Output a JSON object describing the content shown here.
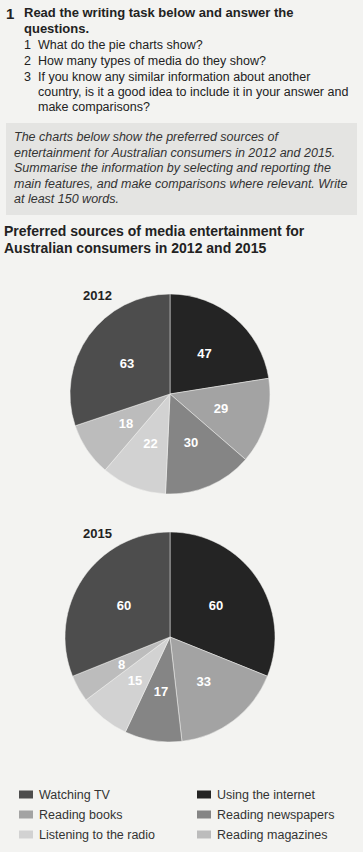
{
  "exercise": {
    "number": "1",
    "instruction": "Read the writing task below and answer the questions.",
    "questions": [
      {
        "number": "1",
        "text": "What do the pie charts show?"
      },
      {
        "number": "2",
        "text": "How many types of media do they show?"
      },
      {
        "number": "3",
        "text": "If you know any similar information about another country, is it a good idea to include it in your answer and make comparisons?"
      }
    ]
  },
  "task": "The charts below show the preferred sources of entertainment for Australian consumers in 2012 and 2015. Summarise the information by selecting and reporting the main features, and make comparisons where relevant. Write at least 150 words.",
  "heading": "Preferred sources of media entertainment for Australian consumers in 2012 and 2015",
  "chart_data": [
    {
      "type": "pie",
      "title": "2012",
      "categories": [
        "Using the internet",
        "Reading books",
        "Reading newspapers",
        "Listening to the radio",
        "Reading magazines",
        "Watching TV"
      ],
      "values": [
        47,
        29,
        30,
        22,
        18,
        63
      ],
      "colors": [
        "#242424",
        "#a3a3a3",
        "#858585",
        "#d2d2d2",
        "#bcbcbc",
        "#4d4d4d"
      ],
      "data_labels": true
    },
    {
      "type": "pie",
      "title": "2015",
      "categories": [
        "Using the internet",
        "Reading books",
        "Reading newspapers",
        "Listening to the radio",
        "Reading magazines",
        "Watching TV"
      ],
      "values": [
        60,
        33,
        17,
        15,
        8,
        60
      ],
      "colors": [
        "#242424",
        "#a3a3a3",
        "#858585",
        "#d2d2d2",
        "#bcbcbc",
        "#4d4d4d"
      ],
      "data_labels": true,
      "legend": "bottom"
    }
  ]
}
